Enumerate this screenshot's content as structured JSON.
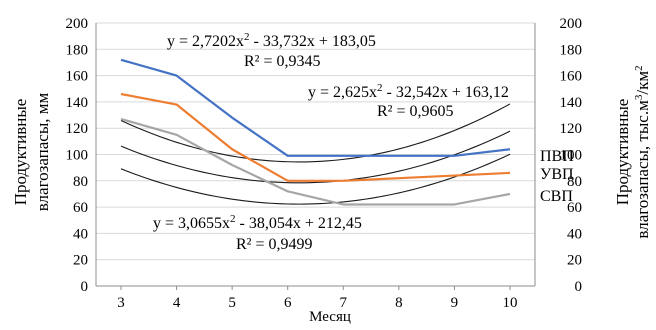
{
  "chart_data": {
    "type": "line",
    "x": [
      3,
      4,
      5,
      6,
      7,
      8,
      9,
      10
    ],
    "xlabel": "Месяц",
    "ylabel_left": [
      "Продуктивные",
      "влагозапасы, мм"
    ],
    "ylabel_right": [
      "Продуктивные",
      "влагозапасы, тыс.м",
      "3",
      "/км",
      "2"
    ],
    "ylim": [
      0,
      200
    ],
    "yticks": [
      "0",
      "20",
      "40",
      "60",
      "80",
      "100",
      "120",
      "140",
      "160",
      "180",
      "200"
    ],
    "xticks": [
      "3",
      "4",
      "5",
      "6",
      "7",
      "8",
      "9",
      "10"
    ],
    "grid": "horizontal",
    "series": [
      {
        "name": "ПВП",
        "color": "#4472c4",
        "values": [
          172,
          160,
          128,
          99,
          99,
          99,
          99,
          104
        ]
      },
      {
        "name": "УВП",
        "color": "#ed7d31",
        "values": [
          146,
          138,
          104,
          80,
          80,
          82,
          84,
          86
        ]
      },
      {
        "name": "СВП",
        "color": "#a6a6a6",
        "values": [
          127,
          115,
          92,
          72,
          62,
          62,
          62,
          70
        ]
      }
    ],
    "trendlines": [
      {
        "a": 2.7202,
        "b": -33.732,
        "c": 183.05
      },
      {
        "a": 2.625,
        "b": -32.542,
        "c": 163.12
      },
      {
        "a": 3.0655,
        "b": -38.054,
        "c": 212.45
      }
    ],
    "annotations": {
      "pvp": {
        "eq_pre": "y = 2,7202x",
        "eq_sup": "2",
        "eq_post": " - 33,732x + 183,05",
        "r2": "R² = 0,9345"
      },
      "uvp": {
        "eq_pre": "y = 2,625x",
        "eq_sup": "2",
        "eq_post": " - 32,542x + 163,12",
        "r2": "R² = 0,9605"
      },
      "svp": {
        "eq_pre": "y = 3,0655x",
        "eq_sup": "2",
        "eq_post": " - 38,054x + 212,45",
        "r2": "R² = 0,9499"
      }
    }
  }
}
